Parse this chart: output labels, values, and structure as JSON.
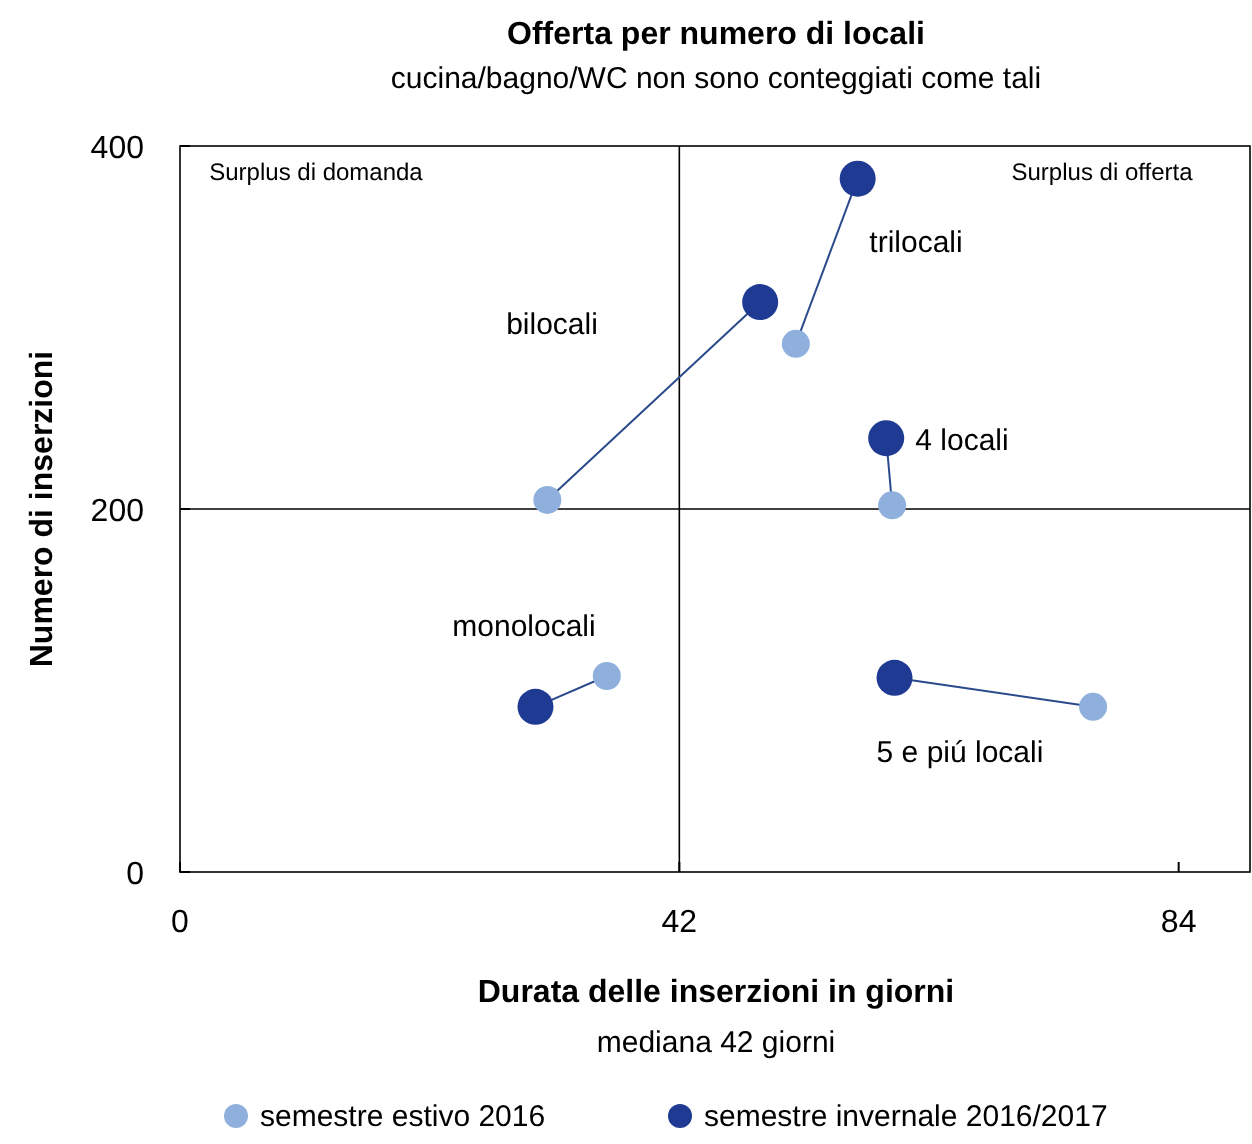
{
  "chart_data": {
    "type": "scatter",
    "title": "Offerta per numero di locali",
    "subtitle": "cucina/bagno/WC non sono conteggiati come tali",
    "xlabel": "Durata delle inserzioni in giorni",
    "ylabel": "Numero di inserzioni",
    "xlim": [
      0,
      90
    ],
    "ylim": [
      0,
      400
    ],
    "xticks": [
      0,
      42,
      84
    ],
    "yticks": [
      0,
      200,
      400
    ],
    "grid": false,
    "legend": "bottom",
    "ref_lines": [
      {
        "axis": "x",
        "value": 42,
        "color": "#000000"
      },
      {
        "axis": "y",
        "value": 200,
        "color": "#000000"
      }
    ],
    "series": [
      {
        "type": "line",
        "color": "#2b4a8c",
        "x": [
          30.9,
          48.8
        ],
        "values": [
          205,
          314
        ]
      },
      {
        "type": "line",
        "color": "#2b4a8c",
        "x": [
          51.8,
          57
        ],
        "values": [
          291,
          382
        ]
      },
      {
        "type": "line",
        "color": "#2b4a8c",
        "x": [
          59.9,
          59.4
        ],
        "values": [
          202,
          239
        ]
      },
      {
        "type": "line",
        "color": "#2b4a8c",
        "x": [
          35.9,
          29.9
        ],
        "values": [
          108,
          91
        ]
      },
      {
        "type": "line",
        "color": "#2b4a8c",
        "x": [
          76.8,
          60.1
        ],
        "values": [
          91,
          107
        ]
      },
      {
        "name": "semestre estivo 2016",
        "color": "#8fb0dc",
        "x": [
          30.9,
          51.8,
          59.9,
          35.9,
          76.8
        ],
        "values": [
          205,
          291,
          202,
          108,
          91
        ]
      },
      {
        "name": "semestre invernale 2016/2017",
        "color": "#1f3a93",
        "x": [
          48.8,
          57,
          59.4,
          29.9,
          60.1
        ],
        "values": [
          314,
          382,
          239,
          91,
          107
        ]
      }
    ],
    "annotations": [
      "bilocali",
      "trilocali",
      "4 locali",
      "5 e piú locali",
      "monolocali",
      "Surplus di domanda",
      "Surplus di offerta",
      "mediana 42 giorni"
    ]
  }
}
